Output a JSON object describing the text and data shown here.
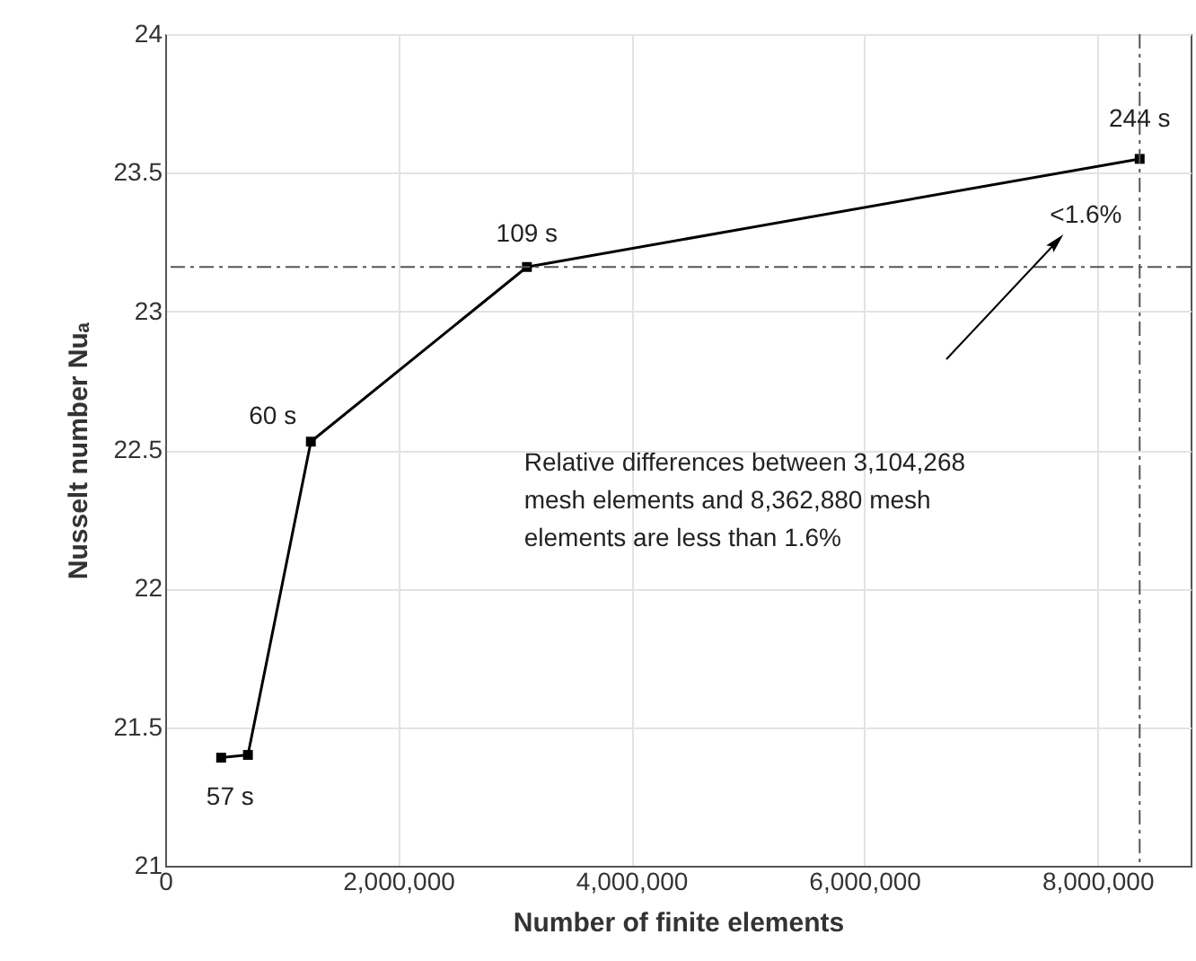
{
  "chart_data": {
    "type": "line",
    "xlabel": "Number of finite elements",
    "ylabel": "Nusselt number Nuₐ",
    "x": [
      480000,
      710000,
      1250000,
      3104268,
      8362880
    ],
    "series": [
      {
        "color": "#000000",
        "values": [
          21.39,
          21.4,
          22.53,
          23.16,
          23.55
        ]
      }
    ],
    "marker": "square",
    "line_style": "solid",
    "grid": true,
    "xlim": [
      0,
      8800000
    ],
    "ylim": [
      21,
      24
    ],
    "xticks": [
      0,
      {
        "value": 2000000,
        "label": "2,000,000"
      },
      {
        "value": 4000000,
        "label": "4,000,000"
      },
      {
        "value": 6000000,
        "label": "6,000,000"
      },
      {
        "value": 8000000,
        "label": "8,000,000"
      }
    ],
    "yticks": [
      21,
      21.5,
      22,
      22.5,
      23,
      23.5,
      24
    ],
    "ref_lines": [
      {
        "axis": "y",
        "value": 23.16,
        "color": "#555555",
        "line_style": "dashdot"
      },
      {
        "axis": "x",
        "value": 8362880,
        "color": "#555555",
        "line_style": "dashdot"
      }
    ],
    "annotations": [
      {
        "text": "57 s",
        "x": 480000,
        "y": 21.39
      },
      {
        "text": "60 s",
        "x": 1250000,
        "y": 22.53
      },
      {
        "text": "109 s",
        "x": 3104268,
        "y": 23.16
      },
      {
        "text": "244 s",
        "x": 8362880,
        "y": 23.55
      },
      "<1.6%",
      "Relative differences between 3,104,268 mesh elements and  8,362,880 mesh elements are less than 1.6%"
    ]
  }
}
